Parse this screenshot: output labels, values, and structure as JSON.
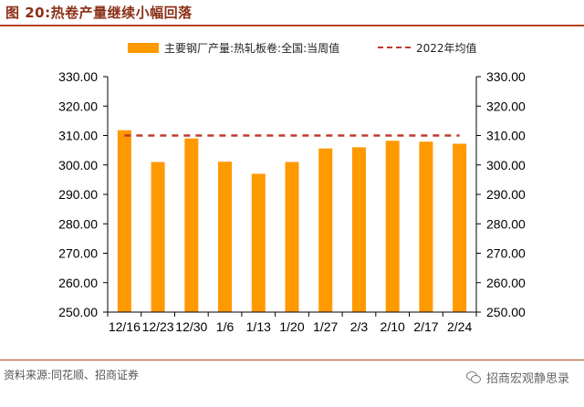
{
  "header": {
    "title": "图 20:热卷产量继续小幅回落"
  },
  "footer": {
    "source": "资料来源:同花顺、招商证券",
    "watermark": "招商宏观静思录"
  },
  "colors": {
    "bar": "#FF9900",
    "avg_line": "#C0392B",
    "title": "#8B2F16"
  },
  "chart_data": {
    "type": "bar",
    "categories": [
      "12/16",
      "12/23",
      "12/30",
      "1/6",
      "1/13",
      "1/20",
      "1/27",
      "2/3",
      "2/10",
      "2/17",
      "2/24"
    ],
    "series": [
      {
        "name": "主要钢厂产量:热轧板卷:全国:当周值",
        "type": "bar",
        "values": [
          311.8,
          301.0,
          309.0,
          301.1,
          297.0,
          301.0,
          305.6,
          306.0,
          308.2,
          307.9,
          307.2
        ]
      },
      {
        "name": "2022年均值",
        "type": "line",
        "style": "dashed",
        "value": 310.0
      }
    ],
    "ylim": [
      250,
      330
    ],
    "yticks": [
      "250.00",
      "260.00",
      "270.00",
      "280.00",
      "290.00",
      "300.00",
      "310.00",
      "320.00",
      "330.00"
    ],
    "y_axes": "left and right (mirrored)",
    "grid": false,
    "legend_position": "top"
  }
}
